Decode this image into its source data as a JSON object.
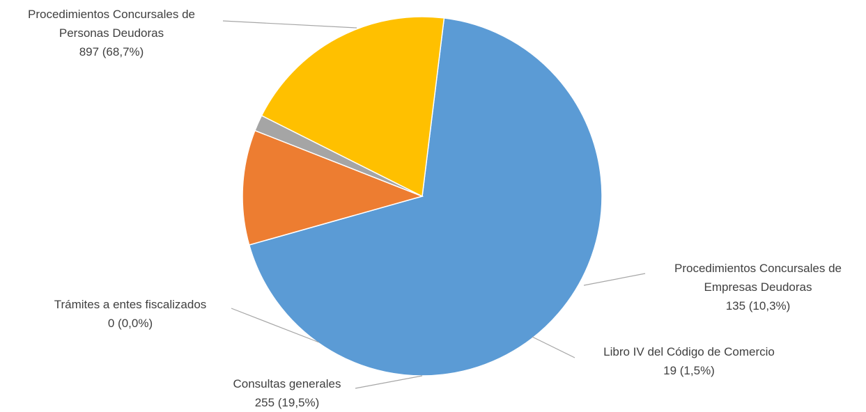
{
  "chart_data": {
    "type": "pie",
    "title": "",
    "start_angle_deg": 7.0,
    "direction": "clockwise",
    "legend": "none",
    "slices": [
      {
        "label_lines": [
          "Procedimientos Concursales de",
          "Personas Deudoras"
        ],
        "value": 897,
        "value_label": "897 (68,7%)",
        "color": "#5B9BD5"
      },
      {
        "label_lines": [
          "Procedimientos Concursales de",
          "Empresas Deudoras"
        ],
        "value": 135,
        "value_label": "135 (10,3%)",
        "color": "#ED7D31"
      },
      {
        "label_lines": [
          "Libro IV del Código de Comercio"
        ],
        "value": 19,
        "value_label": "19 (1,5%)",
        "color": "#A5A5A5"
      },
      {
        "label_lines": [
          "Consultas generales"
        ],
        "value": 255,
        "value_label": "255 (19,5%)",
        "color": "#FFC000"
      },
      {
        "label_lines": [
          "Trámites a entes fiscalizados"
        ],
        "value": 0,
        "value_label": "0 (0,0%)",
        "color": "#4472C4"
      }
    ]
  }
}
